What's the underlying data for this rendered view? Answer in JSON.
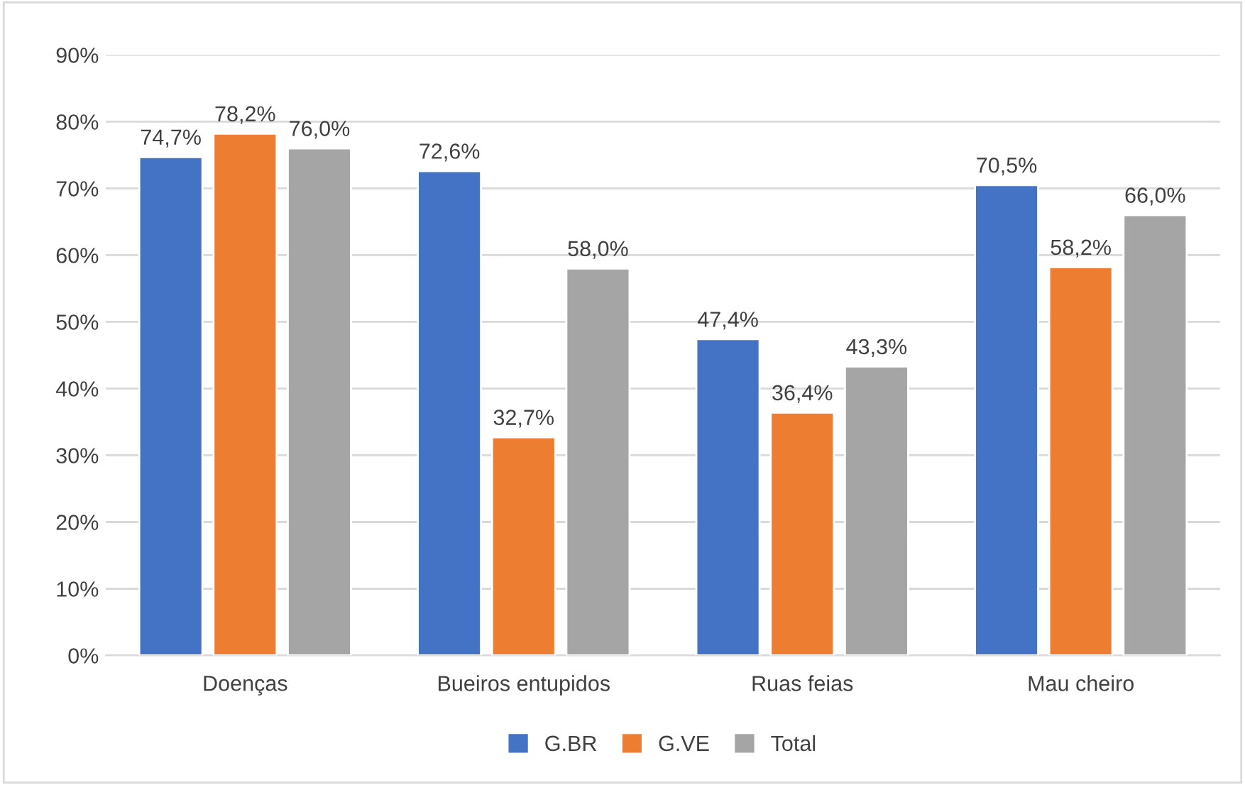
{
  "chart_data": {
    "type": "bar",
    "categories": [
      "Doenças",
      "Bueiros entupidos",
      "Ruas feias",
      "Mau cheiro"
    ],
    "series": [
      {
        "name": "G.BR",
        "color": "#4472c4",
        "values": [
          74.7,
          72.6,
          47.4,
          70.5
        ],
        "value_labels": [
          "74,7%",
          "72,6%",
          "47,4%",
          "70,5%"
        ]
      },
      {
        "name": "G.VE",
        "color": "#ed7d31",
        "values": [
          78.2,
          32.7,
          36.4,
          58.2
        ],
        "value_labels": [
          "78,2%",
          "32,7%",
          "36,4%",
          "58,2%"
        ]
      },
      {
        "name": "Total",
        "color": "#a5a5a5",
        "values": [
          76.0,
          58.0,
          43.3,
          66.0
        ],
        "value_labels": [
          "76,0%",
          "58,0%",
          "43,3%",
          "66,0%"
        ]
      }
    ],
    "ylim": [
      0,
      90
    ],
    "yticks": [
      {
        "value": 0,
        "label": "0%"
      },
      {
        "value": 10,
        "label": "10%"
      },
      {
        "value": 20,
        "label": "20%"
      },
      {
        "value": 30,
        "label": "30%"
      },
      {
        "value": 40,
        "label": "40%"
      },
      {
        "value": 50,
        "label": "50%"
      },
      {
        "value": 60,
        "label": "60%"
      },
      {
        "value": 70,
        "label": "70%"
      },
      {
        "value": 80,
        "label": "80%"
      },
      {
        "value": 90,
        "label": "90%"
      }
    ],
    "grid": "y",
    "legend": "bottom"
  }
}
